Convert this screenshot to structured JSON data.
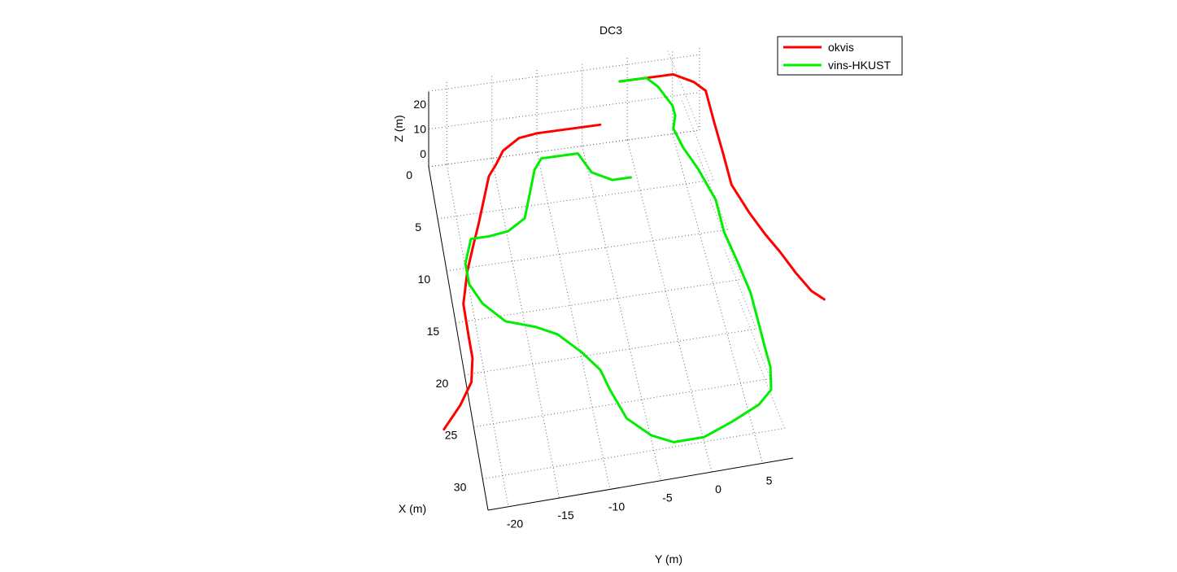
{
  "chart_data": {
    "type": "line",
    "title": "DC3",
    "xlabel": "X (m)",
    "ylabel": "Y (m)",
    "zlabel": "Z (m)",
    "x_ticks": [
      "0",
      "5",
      "10",
      "15",
      "20",
      "25",
      "30"
    ],
    "y_ticks": [
      "-20",
      "-15",
      "-10",
      "-5",
      "0",
      "5"
    ],
    "z_ticks": [
      "0",
      "10",
      "20"
    ],
    "grid": true,
    "legend_position": "top-right",
    "series": [
      {
        "name": "okvis",
        "color": "#ff0000",
        "points": [
          [
            -3,
            0,
            8
          ],
          [
            -5,
            0,
            8
          ],
          [
            -8,
            0,
            8
          ],
          [
            -10,
            0,
            8
          ],
          [
            -12,
            0,
            7
          ],
          [
            -14,
            1,
            7
          ],
          [
            -15,
            2,
            6
          ],
          [
            -16,
            3,
            6
          ],
          [
            -17,
            5,
            5
          ],
          [
            -18,
            7,
            4
          ],
          [
            -19,
            9,
            4
          ],
          [
            -20,
            11,
            3
          ],
          [
            -21,
            14,
            3
          ],
          [
            -21,
            17,
            2
          ],
          [
            -21,
            19,
            2
          ],
          [
            -21.5,
            21,
            1
          ],
          [
            -23,
            23,
            1
          ],
          [
            -25,
            25,
            1
          ]
        ],
        "points_2": [
          [
            0,
            -3,
            12
          ],
          [
            2,
            -3,
            12
          ],
          [
            4,
            -3,
            12
          ],
          [
            6,
            -3,
            12
          ],
          [
            8,
            -2,
            12
          ],
          [
            9,
            -1,
            12
          ],
          [
            9,
            2,
            11
          ],
          [
            9,
            5,
            11
          ],
          [
            9,
            8,
            10
          ],
          [
            10,
            11,
            10
          ],
          [
            11,
            13,
            9
          ],
          [
            12,
            15,
            9
          ],
          [
            13,
            17,
            8
          ],
          [
            14,
            19,
            8
          ],
          [
            15,
            20,
            8
          ]
        ]
      },
      {
        "name": "vins-HKUST",
        "color": "#00ee00",
        "points": [
          [
            0,
            -3,
            12
          ],
          [
            3,
            -3,
            12
          ],
          [
            4,
            -2,
            12
          ],
          [
            5,
            0,
            12
          ],
          [
            5,
            1,
            12
          ],
          [
            4.5,
            2,
            11
          ],
          [
            5,
            4,
            11
          ],
          [
            6,
            6,
            10
          ],
          [
            7,
            9,
            9
          ],
          [
            7,
            12,
            8
          ],
          [
            7.5,
            15,
            8
          ],
          [
            8,
            18,
            7
          ],
          [
            8,
            21,
            6
          ],
          [
            8,
            23,
            5
          ],
          [
            8,
            25,
            5
          ],
          [
            7.5,
            27,
            4
          ],
          [
            6,
            28,
            3
          ],
          [
            3,
            29,
            2
          ],
          [
            0,
            30,
            2
          ],
          [
            -3,
            30,
            2
          ],
          [
            -5,
            29,
            2
          ],
          [
            -7,
            27,
            2
          ],
          [
            -8,
            24,
            2
          ],
          [
            -8.5,
            22,
            2
          ],
          [
            -10,
            20,
            2
          ],
          [
            -12,
            18,
            2
          ],
          [
            -14,
            17,
            2
          ],
          [
            -17,
            16,
            2
          ],
          [
            -19,
            14,
            2
          ],
          [
            -20,
            12,
            2
          ],
          [
            -20,
            10,
            2
          ],
          [
            -19,
            8,
            3
          ],
          [
            -17,
            8,
            3
          ],
          [
            -15,
            8,
            4
          ],
          [
            -13,
            7,
            4
          ],
          [
            -12,
            5,
            5
          ],
          [
            -11,
            3,
            6
          ],
          [
            -10,
            2,
            6
          ],
          [
            -8,
            2,
            6
          ],
          [
            -6,
            2,
            6
          ],
          [
            -5,
            4,
            6
          ],
          [
            -3,
            5,
            6
          ],
          [
            -1,
            5,
            6
          ]
        ]
      }
    ]
  },
  "legend": {
    "items": [
      {
        "label": "okvis",
        "color": "#ff0000"
      },
      {
        "label": "vins-HKUST",
        "color": "#00ee00"
      }
    ]
  }
}
